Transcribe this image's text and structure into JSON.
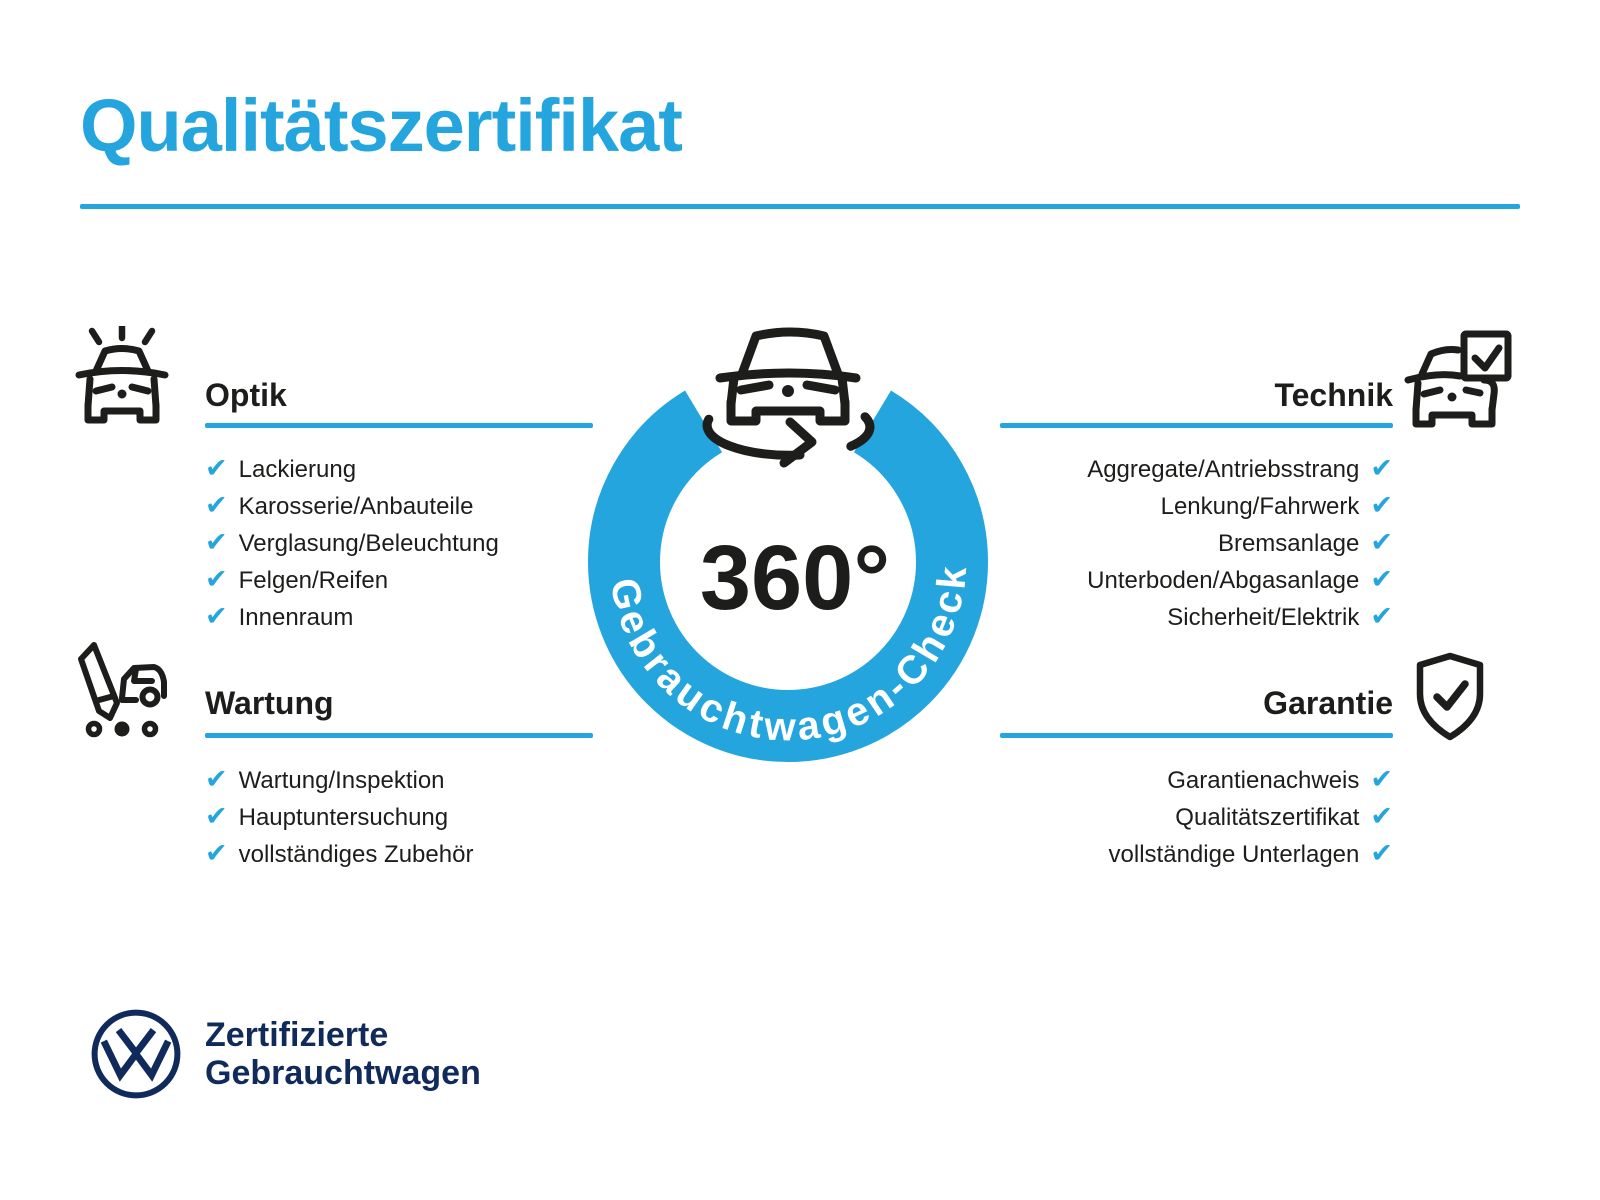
{
  "page": {
    "title": "Qualitätszertifikat"
  },
  "colors": {
    "accent": "#24A5DE",
    "navy": "#102A5C",
    "ink": "#1D1D1B"
  },
  "center": {
    "degrees": "360°",
    "ring_label": "Gebrauchtwagen-Check",
    "icon": "car-360-rotation-icon"
  },
  "check_glyph": "✔",
  "sections": [
    {
      "id": "optik",
      "title": "Optik",
      "icon": "car-shine-icon",
      "side": "left",
      "items": [
        "Lackierung",
        "Karosserie/Anbauteile",
        "Verglasung/Beleuchtung",
        "Felgen/Reifen",
        "Innenraum"
      ]
    },
    {
      "id": "technik",
      "title": "Technik",
      "icon": "car-checklist-icon",
      "side": "right",
      "items": [
        "Aggregate/Antriebsstrang",
        "Lenkung/Fahrwerk",
        "Bremsanlage",
        "Unterboden/Abgasanlage",
        "Sicherheit/Elektrik"
      ]
    },
    {
      "id": "wartung",
      "title": "Wartung",
      "icon": "pencil-car-icon",
      "side": "left",
      "items": [
        "Wartung/Inspektion",
        "Hauptuntersuchung",
        "vollständiges Zubehör"
      ]
    },
    {
      "id": "garantie",
      "title": "Garantie",
      "icon": "shield-check-icon",
      "side": "right",
      "items": [
        "Garantienachweis",
        "Qualitätszertifikat",
        "vollständige Unterlagen"
      ]
    }
  ],
  "footer": {
    "brand_line1": "Zertifizierte",
    "brand_line2": "Gebrauchtwagen",
    "logo": "vw-logo"
  }
}
